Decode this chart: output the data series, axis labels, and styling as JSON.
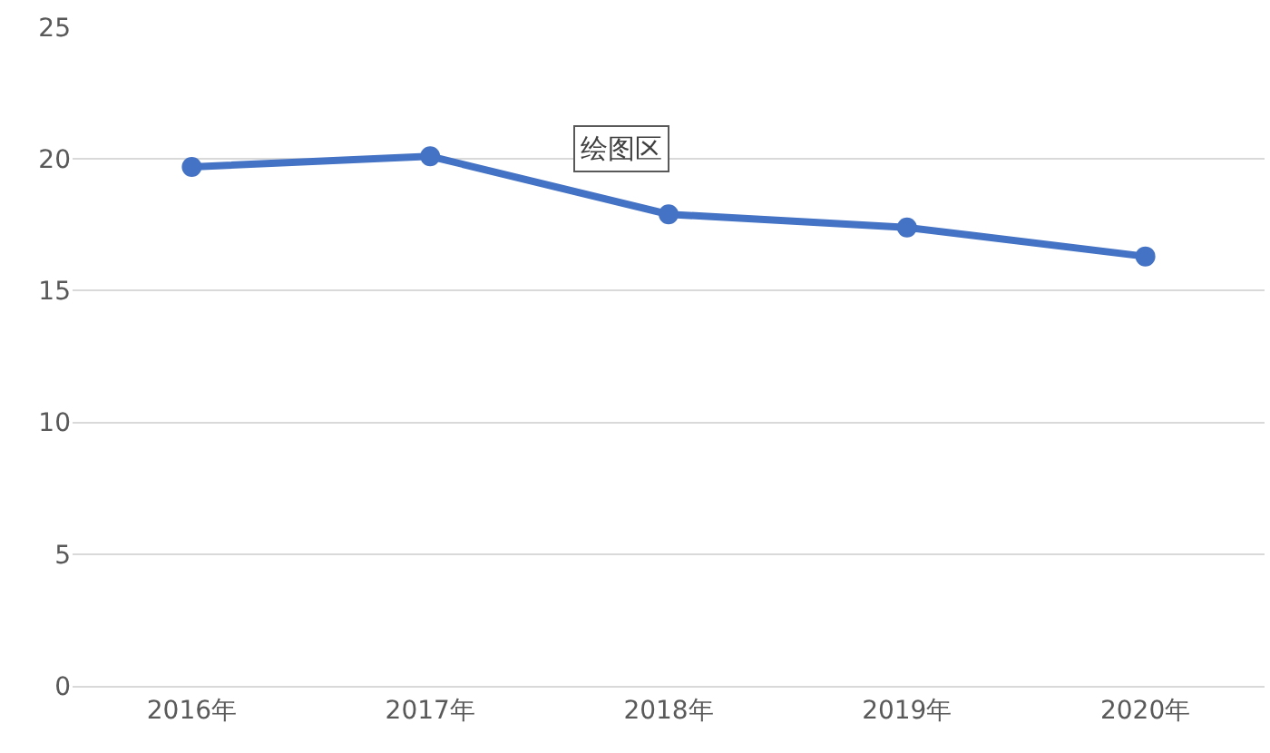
{
  "chart_data": {
    "type": "line",
    "categories": [
      "2016年",
      "2017年",
      "2018年",
      "2019年",
      "2020年"
    ],
    "series": [
      {
        "color": "#4472c4",
        "values": [
          19.7,
          20.1,
          17.9,
          17.4,
          16.3
        ]
      }
    ],
    "ylim": [
      0,
      25
    ],
    "yticks": [
      0,
      5,
      10,
      15,
      20,
      25
    ],
    "grid": "y",
    "marker": "circle",
    "line_style": "solid",
    "annotations": [
      "绘图区"
    ]
  }
}
